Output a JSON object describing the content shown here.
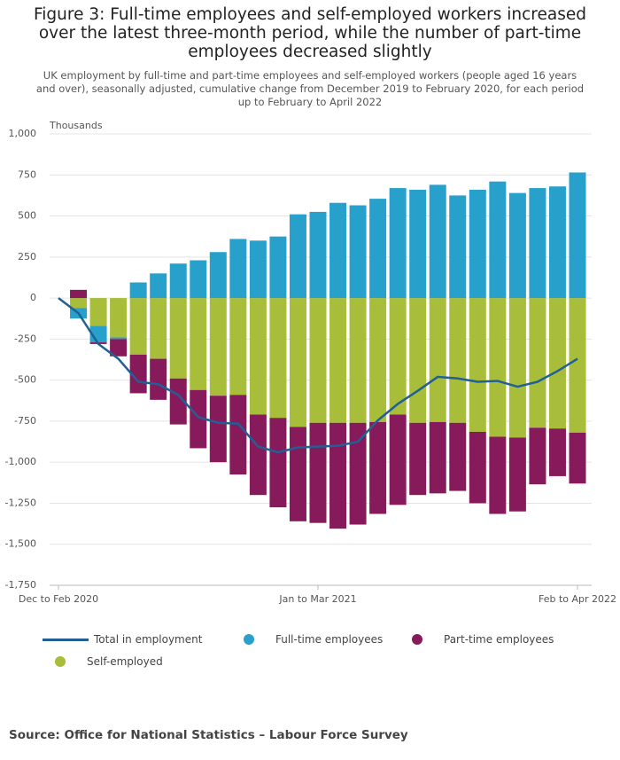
{
  "chart_data": {
    "type": "stacked-bar-line",
    "title": "Figure 3: Full-time employees and self-employed workers increased over the latest three-month period, while the number of part-time employees decreased slightly",
    "subtitle": "UK employment by full-time and part-time employees and self-employed workers (people aged 16 years and over), seasonally adjusted, cumulative change from December 2019 to February 2020, for each period up to February to April 2022",
    "y_label": "Thousands",
    "source": "Source: Office for National Statistics – Labour Force Survey",
    "categories": [
      "Dec to Feb 2020",
      null,
      null,
      null,
      null,
      null,
      null,
      null,
      null,
      null,
      null,
      null,
      null,
      "Jan to Mar 2021",
      null,
      null,
      null,
      null,
      null,
      null,
      null,
      null,
      null,
      null,
      null,
      null,
      "Feb to Apr 2022"
    ],
    "ylim": [
      -1750,
      1000
    ],
    "yticks": [
      {
        "value": 1000,
        "label": "1,000"
      },
      750,
      500,
      250,
      0,
      -250,
      -500,
      -750,
      {
        "value": -1000,
        "label": "-1,000"
      },
      {
        "value": -1250,
        "label": "-1,250"
      },
      {
        "value": -1500,
        "label": "-1,500"
      },
      {
        "value": -1750,
        "label": "-1,750"
      }
    ],
    "grid": true,
    "series": [
      {
        "name": "Total in employment",
        "type": "line",
        "color": "#206095",
        "values": [
          0,
          -92,
          -280,
          -370,
          -510,
          -525,
          -590,
          -725,
          -760,
          -765,
          -905,
          -940,
          -910,
          -905,
          -900,
          -875,
          -745,
          -645,
          -565,
          -480,
          -490,
          -510,
          -505,
          -540,
          -510,
          -445,
          -370
        ]
      },
      {
        "name": "Full-time employees",
        "type": "bar",
        "color": "#27a0cc",
        "values": [
          0,
          -65,
          -100,
          -10,
          95,
          150,
          210,
          230,
          280,
          360,
          350,
          375,
          510,
          525,
          580,
          565,
          605,
          670,
          660,
          690,
          625,
          660,
          710,
          640,
          670,
          680,
          765
        ]
      },
      {
        "name": "Part-time employees",
        "type": "bar",
        "color": "#871a5b",
        "values": [
          0,
          50,
          -10,
          -105,
          -235,
          -250,
          -280,
          -355,
          -405,
          -485,
          -490,
          -545,
          -575,
          -610,
          -645,
          -620,
          -560,
          -550,
          -440,
          -435,
          -415,
          -435,
          -470,
          -450,
          -345,
          -290,
          -310
        ]
      },
      {
        "name": "Self-employed",
        "type": "bar",
        "color": "#a8bd3a",
        "values": [
          0,
          -60,
          -170,
          -240,
          -345,
          -370,
          -490,
          -560,
          -595,
          -590,
          -710,
          -730,
          -785,
          -760,
          -760,
          -760,
          -755,
          -710,
          -760,
          -755,
          -760,
          -815,
          -845,
          -850,
          -790,
          -795,
          -820
        ]
      }
    ]
  }
}
